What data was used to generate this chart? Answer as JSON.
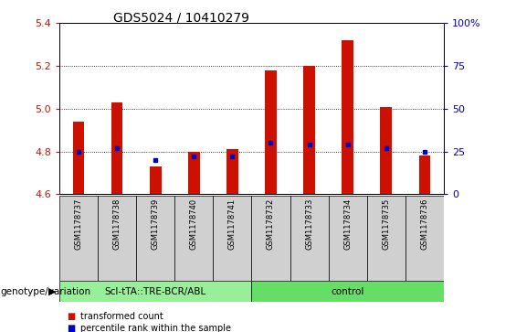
{
  "title": "GDS5024 / 10410279",
  "samples": [
    "GSM1178737",
    "GSM1178738",
    "GSM1178739",
    "GSM1178740",
    "GSM1178741",
    "GSM1178732",
    "GSM1178733",
    "GSM1178734",
    "GSM1178735",
    "GSM1178736"
  ],
  "transformed_counts": [
    4.94,
    5.03,
    4.73,
    4.8,
    4.81,
    5.18,
    5.2,
    5.32,
    5.01,
    4.78
  ],
  "percentile_ranks": [
    25,
    27,
    20,
    22,
    22,
    30,
    29,
    29,
    27,
    25
  ],
  "ylim": [
    4.6,
    5.4
  ],
  "yticks_left": [
    4.6,
    4.8,
    5.0,
    5.2,
    5.4
  ],
  "yticks_right": [
    0,
    25,
    50,
    75,
    100
  ],
  "bar_color": "#cc1100",
  "dot_color": "#0000cc",
  "group1_label": "ScI-tTA::TRE-BCR/ABL",
  "group2_label": "control",
  "group1_indices": [
    0,
    1,
    2,
    3,
    4
  ],
  "group2_indices": [
    5,
    6,
    7,
    8,
    9
  ],
  "group1_color": "#99ee99",
  "group2_color": "#66dd66",
  "genotype_label": "genotype/variation",
  "legend_red": "transformed count",
  "legend_blue": "percentile rank within the sample",
  "plot_bg": "#ffffff",
  "title_fontsize": 10,
  "axis_label_color_left": "#cc1100",
  "axis_label_color_right": "#0000cc",
  "bar_width": 0.3
}
